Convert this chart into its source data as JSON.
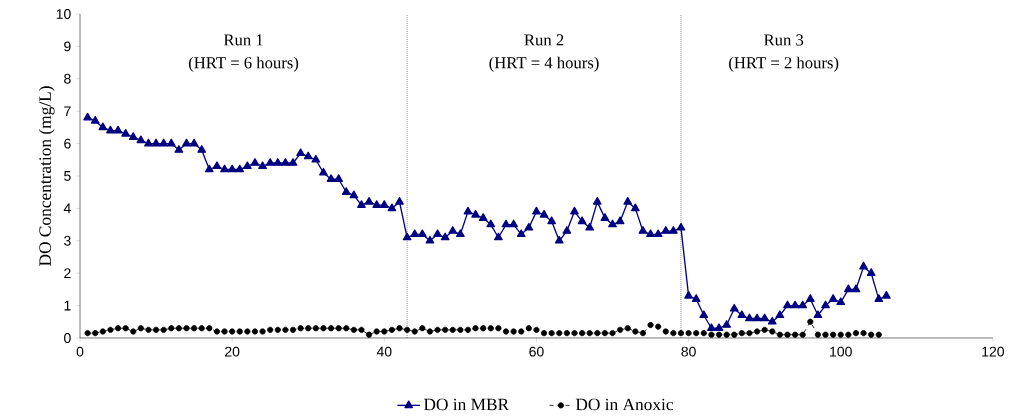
{
  "chart_data": {
    "type": "line",
    "ylabel": "DO Concentration (mg/L)",
    "xlim": [
      0,
      120
    ],
    "xticks": [
      0,
      20,
      40,
      60,
      80,
      100,
      120
    ],
    "ylim": [
      0,
      10
    ],
    "yticks": [
      0,
      1,
      2,
      3,
      4,
      5,
      6,
      7,
      8,
      9,
      10
    ],
    "grid": false,
    "legend": "bottom",
    "ref_lines": [
      {
        "axis": "x",
        "value": 43,
        "line_style": "dotted",
        "color": "#000000"
      },
      {
        "axis": "x",
        "value": 79,
        "line_style": "dotted",
        "color": "#000000"
      }
    ],
    "annotations": [
      "Run 1",
      "(HRT = 6 hours)",
      "Run 2",
      "(HRT = 4 hours)",
      "Run 3",
      "(HRT = 2 hours)"
    ],
    "series": [
      {
        "name": "DO in MBR",
        "color": "#000080",
        "marker": "triangle",
        "line_style": "solid",
        "x": [
          1,
          2,
          3,
          4,
          5,
          6,
          7,
          8,
          9,
          10,
          11,
          12,
          13,
          14,
          15,
          16,
          17,
          18,
          19,
          20,
          21,
          22,
          23,
          24,
          25,
          26,
          27,
          28,
          29,
          30,
          31,
          32,
          33,
          34,
          35,
          36,
          37,
          38,
          39,
          40,
          41,
          42,
          43,
          44,
          45,
          46,
          47,
          48,
          49,
          50,
          51,
          52,
          53,
          54,
          55,
          56,
          57,
          58,
          59,
          60,
          61,
          62,
          63,
          64,
          65,
          66,
          67,
          68,
          69,
          70,
          71,
          72,
          73,
          74,
          75,
          76,
          77,
          78,
          79,
          80,
          81,
          82,
          83,
          84,
          85,
          86,
          87,
          88,
          89,
          90,
          91,
          92,
          93,
          94,
          95,
          96,
          97,
          98,
          99,
          100,
          101,
          102,
          103,
          104,
          105,
          106
        ],
        "values": [
          6.8,
          6.7,
          6.5,
          6.4,
          6.4,
          6.3,
          6.2,
          6.1,
          6.0,
          6.0,
          6.0,
          6.0,
          5.8,
          6.0,
          6.0,
          5.8,
          5.2,
          5.3,
          5.2,
          5.2,
          5.2,
          5.3,
          5.4,
          5.3,
          5.4,
          5.4,
          5.4,
          5.4,
          5.7,
          5.6,
          5.5,
          5.1,
          4.9,
          4.9,
          4.5,
          4.4,
          4.1,
          4.2,
          4.1,
          4.1,
          4.0,
          4.2,
          3.1,
          3.2,
          3.2,
          3.0,
          3.2,
          3.1,
          3.3,
          3.2,
          3.9,
          3.8,
          3.7,
          3.5,
          3.1,
          3.5,
          3.5,
          3.2,
          3.4,
          3.9,
          3.8,
          3.6,
          3.0,
          3.3,
          3.9,
          3.6,
          3.4,
          4.2,
          3.7,
          3.5,
          3.6,
          4.2,
          4.0,
          3.3,
          3.2,
          3.2,
          3.3,
          3.3,
          3.4,
          1.3,
          1.2,
          0.7,
          0.3,
          0.3,
          0.4,
          0.9,
          0.7,
          0.6,
          0.6,
          0.6,
          0.5,
          0.7,
          1.0,
          1.0,
          1.0,
          1.2,
          0.7,
          1.0,
          1.2,
          1.1,
          1.5,
          1.5,
          2.2,
          2.0,
          1.2,
          1.3
        ]
      },
      {
        "name": "DO in Anoxic",
        "color": "#000000",
        "marker": "circle",
        "line_style": "dashed",
        "x": [
          1,
          2,
          3,
          4,
          5,
          6,
          7,
          8,
          9,
          10,
          11,
          12,
          13,
          14,
          15,
          16,
          17,
          18,
          19,
          20,
          21,
          22,
          23,
          24,
          25,
          26,
          27,
          28,
          29,
          30,
          31,
          32,
          33,
          34,
          35,
          36,
          37,
          38,
          39,
          40,
          41,
          42,
          43,
          44,
          45,
          46,
          47,
          48,
          49,
          50,
          51,
          52,
          53,
          54,
          55,
          56,
          57,
          58,
          59,
          60,
          61,
          62,
          63,
          64,
          65,
          66,
          67,
          68,
          69,
          70,
          71,
          72,
          73,
          74,
          75,
          76,
          77,
          78,
          79,
          80,
          81,
          82,
          83,
          84,
          85,
          86,
          87,
          88,
          89,
          90,
          91,
          92,
          93,
          94,
          95,
          96,
          97,
          98,
          99,
          100,
          101,
          102,
          103,
          104,
          105
        ],
        "values": [
          0.15,
          0.15,
          0.2,
          0.25,
          0.3,
          0.3,
          0.2,
          0.3,
          0.25,
          0.25,
          0.25,
          0.3,
          0.3,
          0.3,
          0.3,
          0.3,
          0.3,
          0.2,
          0.2,
          0.2,
          0.2,
          0.2,
          0.2,
          0.2,
          0.25,
          0.25,
          0.25,
          0.25,
          0.3,
          0.3,
          0.3,
          0.3,
          0.3,
          0.3,
          0.3,
          0.25,
          0.25,
          0.1,
          0.2,
          0.2,
          0.25,
          0.3,
          0.25,
          0.2,
          0.3,
          0.2,
          0.25,
          0.25,
          0.25,
          0.25,
          0.25,
          0.3,
          0.3,
          0.3,
          0.3,
          0.2,
          0.2,
          0.2,
          0.3,
          0.25,
          0.15,
          0.15,
          0.15,
          0.15,
          0.15,
          0.15,
          0.15,
          0.15,
          0.15,
          0.15,
          0.25,
          0.3,
          0.2,
          0.15,
          0.4,
          0.35,
          0.2,
          0.15,
          0.15,
          0.15,
          0.15,
          0.15,
          0.1,
          0.1,
          0.1,
          0.1,
          0.15,
          0.15,
          0.2,
          0.25,
          0.2,
          0.1,
          0.1,
          0.1,
          0.1,
          0.5,
          0.1,
          0.1,
          0.1,
          0.1,
          0.1,
          0.15,
          0.15,
          0.1,
          0.1
        ]
      }
    ]
  }
}
